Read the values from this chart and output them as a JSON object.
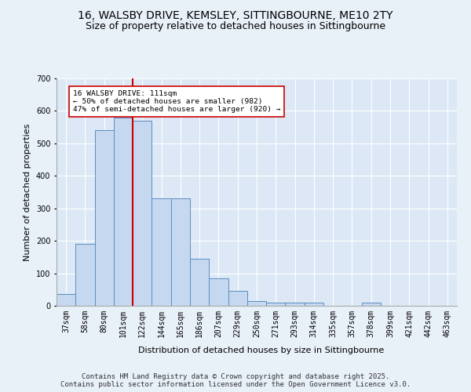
{
  "title": "16, WALSBY DRIVE, KEMSLEY, SITTINGBOURNE, ME10 2TY",
  "subtitle": "Size of property relative to detached houses in Sittingbourne",
  "xlabel": "Distribution of detached houses by size in Sittingbourne",
  "ylabel": "Number of detached properties",
  "categories": [
    "37sqm",
    "58sqm",
    "80sqm",
    "101sqm",
    "122sqm",
    "144sqm",
    "165sqm",
    "186sqm",
    "207sqm",
    "229sqm",
    "250sqm",
    "271sqm",
    "293sqm",
    "314sqm",
    "335sqm",
    "357sqm",
    "378sqm",
    "399sqm",
    "421sqm",
    "442sqm",
    "463sqm"
  ],
  "values": [
    37,
    190,
    540,
    580,
    570,
    330,
    330,
    145,
    85,
    45,
    15,
    10,
    10,
    10,
    0,
    0,
    10,
    0,
    0,
    0,
    0
  ],
  "bar_color": "#c5d8f0",
  "bar_edge_color": "#5b8dc0",
  "vline_color": "#cc0000",
  "annotation_text": "16 WALSBY DRIVE: 111sqm\n← 50% of detached houses are smaller (982)\n47% of semi-detached houses are larger (920) →",
  "annotation_box_color": "#ffffff",
  "annotation_box_edge_color": "#cc0000",
  "ylim": [
    0,
    700
  ],
  "yticks": [
    0,
    100,
    200,
    300,
    400,
    500,
    600,
    700
  ],
  "background_color": "#e8f0f8",
  "plot_background": "#dce8f5",
  "footer_line1": "Contains HM Land Registry data © Crown copyright and database right 2025.",
  "footer_line2": "Contains public sector information licensed under the Open Government Licence v3.0.",
  "title_fontsize": 10,
  "subtitle_fontsize": 9,
  "xlabel_fontsize": 8,
  "ylabel_fontsize": 8,
  "tick_fontsize": 7,
  "footer_fontsize": 6.5,
  "vline_x_index": 3.5
}
